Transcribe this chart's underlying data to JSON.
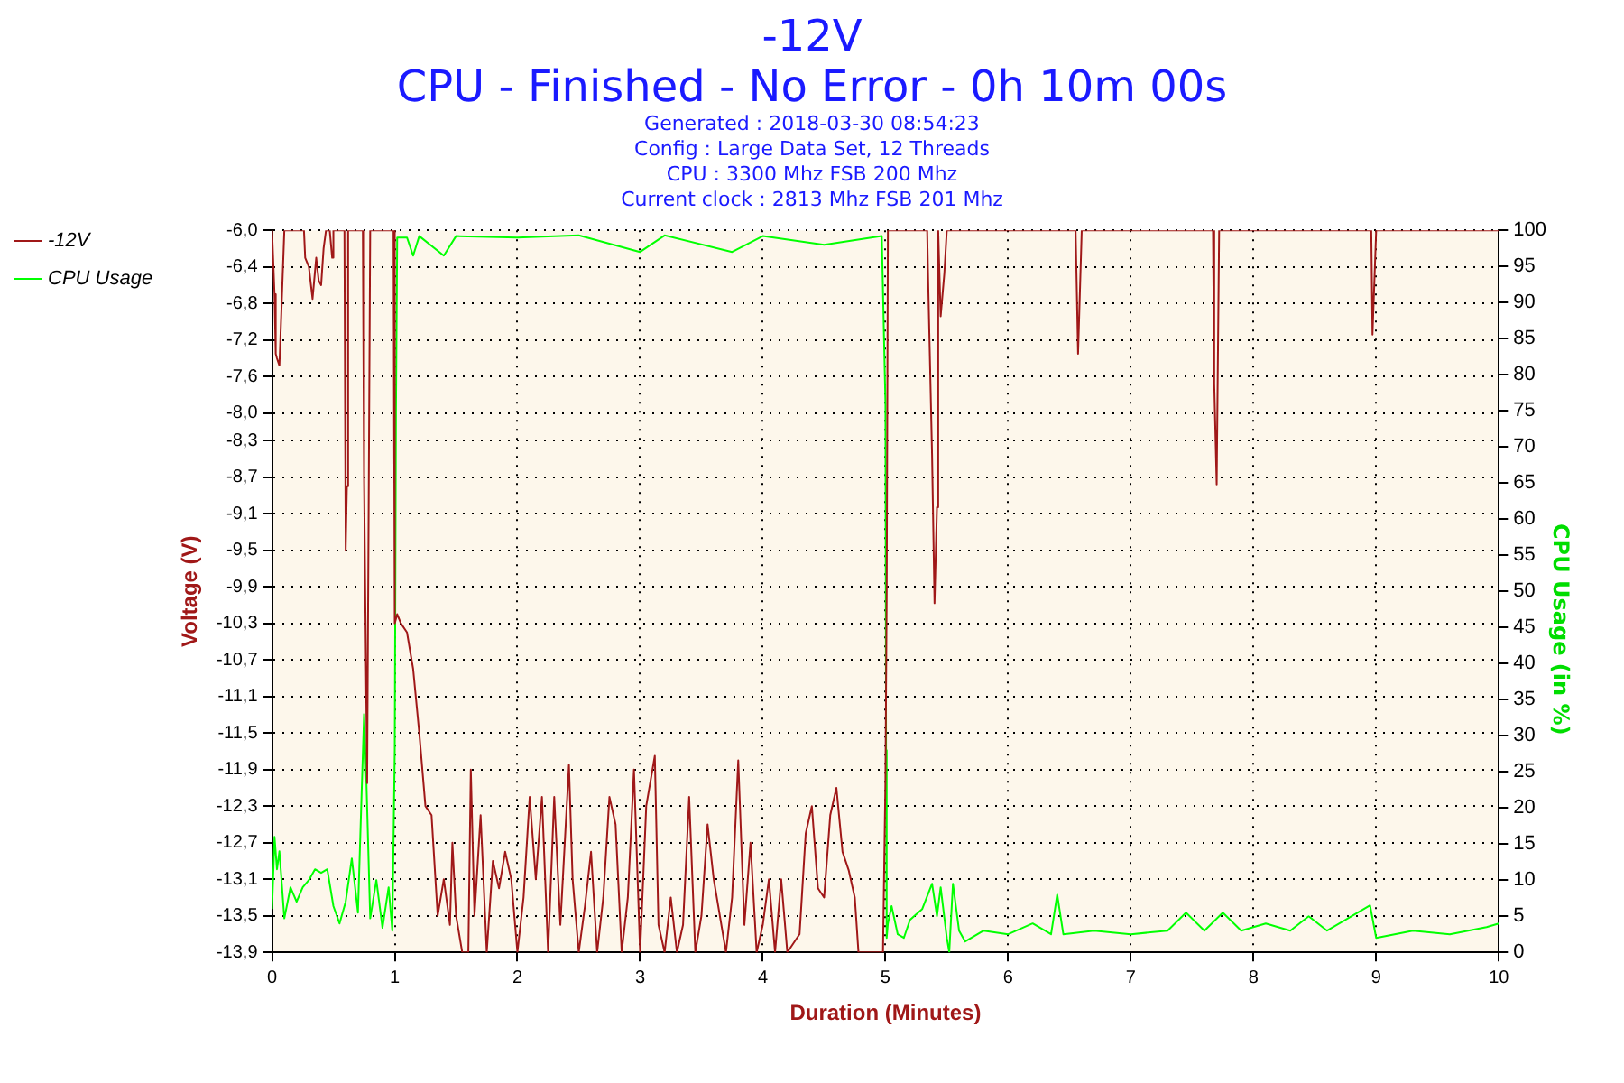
{
  "chart_data": {
    "type": "line",
    "title": "-12V",
    "subtitle": "CPU - Finished - No Error - 0h 10m 00s",
    "annotations": [
      "Generated : 2018-03-30 08:54:23",
      "Config : Large Data Set, 12 Threads",
      "CPU : 3300 Mhz FSB 200 Mhz",
      "Current clock : 2813 Mhz FSB 201 Mhz"
    ],
    "xlabel": "Duration (Minutes)",
    "ylabel": "Voltage (V)",
    "y2label": "CPU Usage (in %)",
    "xlim": [
      0,
      10
    ],
    "xticks": [
      0,
      1,
      2,
      3,
      4,
      5,
      6,
      7,
      8,
      9,
      10
    ],
    "ylim": [
      -13.9,
      -6.0
    ],
    "yticks": [
      {
        "value": -6.0,
        "label": "-6,0"
      },
      {
        "value": -6.4,
        "label": "-6,4"
      },
      {
        "value": -6.8,
        "label": "-6,8"
      },
      {
        "value": -7.2,
        "label": "-7,2"
      },
      {
        "value": -7.6,
        "label": "-7,6"
      },
      {
        "value": -8.0,
        "label": "-8,0"
      },
      {
        "value": -8.3,
        "label": "-8,3"
      },
      {
        "value": -8.7,
        "label": "-8,7"
      },
      {
        "value": -9.1,
        "label": "-9,1"
      },
      {
        "value": -9.5,
        "label": "-9,5"
      },
      {
        "value": -9.9,
        "label": "-9,9"
      },
      {
        "value": -10.3,
        "label": "-10,3"
      },
      {
        "value": -10.7,
        "label": "-10,7"
      },
      {
        "value": -11.1,
        "label": "-11,1"
      },
      {
        "value": -11.5,
        "label": "-11,5"
      },
      {
        "value": -11.9,
        "label": "-11,9"
      },
      {
        "value": -12.3,
        "label": "-12,3"
      },
      {
        "value": -12.7,
        "label": "-12,7"
      },
      {
        "value": -13.1,
        "label": "-13,1"
      },
      {
        "value": -13.5,
        "label": "-13,5"
      },
      {
        "value": -13.9,
        "label": "-13,9"
      }
    ],
    "y2lim": [
      0,
      100
    ],
    "y2ticks": [
      0,
      5,
      10,
      15,
      20,
      25,
      30,
      35,
      40,
      45,
      50,
      55,
      60,
      65,
      70,
      75,
      80,
      85,
      90,
      95,
      100
    ],
    "grid": true,
    "legend": "top left",
    "line_style": "solid",
    "marker": "none",
    "series": [
      {
        "name": "-12V",
        "color": "#a01818",
        "x": [
          0,
          0.02,
          0.03,
          0.04,
          0.06,
          0.1,
          0.12,
          0.26,
          0.27,
          0.3,
          0.33,
          0.36,
          0.38,
          0.4,
          0.42,
          0.44,
          0.47,
          0.49,
          0.5,
          0.59,
          0.6,
          0.61,
          0.62,
          0.74,
          0.75,
          0.775,
          0.8,
          0.99,
          1.0,
          1.02,
          1.05,
          1.1,
          1.15,
          1.2,
          1.25,
          1.3,
          1.35,
          1.4,
          1.45,
          1.47,
          1.5,
          1.55,
          1.6,
          1.62,
          1.65,
          1.7,
          1.75,
          1.8,
          1.85,
          1.9,
          1.95,
          2.0,
          2.05,
          2.1,
          2.15,
          2.2,
          2.25,
          2.3,
          2.35,
          2.42,
          2.45,
          2.5,
          2.55,
          2.6,
          2.65,
          2.7,
          2.75,
          2.8,
          2.85,
          2.9,
          2.95,
          3.0,
          3.05,
          3.12,
          3.15,
          3.2,
          3.25,
          3.3,
          3.35,
          3.4,
          3.45,
          3.5,
          3.55,
          3.6,
          3.65,
          3.7,
          3.75,
          3.8,
          3.85,
          3.9,
          3.95,
          4.0,
          4.05,
          4.1,
          4.15,
          4.2,
          4.3,
          4.35,
          4.4,
          4.45,
          4.5,
          4.55,
          4.6,
          4.65,
          4.7,
          4.75,
          4.78,
          4.98,
          5.0,
          5.01,
          5.02,
          5.34,
          5.35,
          5.38,
          5.4,
          5.42,
          5.43,
          5.45,
          5.48,
          5.5,
          6.55,
          6.57,
          6.6,
          7.67,
          7.68,
          7.7,
          7.72,
          8.96,
          8.97,
          9.0,
          10
        ],
        "values": [
          -6.0,
          -6.7,
          -7.35,
          -7.4,
          -7.48,
          -6.0,
          -6.0,
          -6.0,
          -6.3,
          -6.4,
          -6.75,
          -6.3,
          -6.55,
          -6.6,
          -6.2,
          -6.0,
          -6.0,
          -6.3,
          -6.0,
          -6.0,
          -9.5,
          -8.8,
          -6.0,
          -6.0,
          -8.7,
          -12.05,
          -6.0,
          -6.0,
          -10.3,
          -10.2,
          -10.3,
          -10.4,
          -10.8,
          -11.5,
          -12.3,
          -12.4,
          -13.5,
          -13.1,
          -13.6,
          -12.7,
          -13.5,
          -13.9,
          -13.9,
          -11.9,
          -13.5,
          -12.4,
          -13.9,
          -12.9,
          -13.2,
          -12.8,
          -13.1,
          -13.9,
          -13.3,
          -12.2,
          -13.1,
          -12.2,
          -13.9,
          -12.2,
          -13.6,
          -11.85,
          -13.1,
          -13.9,
          -13.4,
          -12.8,
          -13.9,
          -13.3,
          -12.2,
          -12.5,
          -13.9,
          -13.3,
          -11.9,
          -13.9,
          -12.3,
          -11.75,
          -13.6,
          -13.9,
          -13.3,
          -13.9,
          -13.6,
          -12.2,
          -13.9,
          -13.5,
          -12.5,
          -13.1,
          -13.5,
          -13.9,
          -13.3,
          -11.8,
          -13.6,
          -12.7,
          -13.9,
          -13.6,
          -13.1,
          -13.9,
          -13.1,
          -13.9,
          -13.7,
          -12.6,
          -12.3,
          -13.2,
          -13.3,
          -12.4,
          -12.1,
          -12.8,
          -13.0,
          -13.3,
          -13.9,
          -13.9,
          -12.0,
          -10.0,
          -6.0,
          -6.0,
          -6.67,
          -8.46,
          -10.08,
          -9.03,
          -6.0,
          -6.94,
          -6.47,
          -6.0,
          -6.0,
          -7.35,
          -6.0,
          -6.0,
          -7.68,
          -8.78,
          -6.0,
          -6.0,
          -7.14,
          -6.0,
          -6.0
        ]
      },
      {
        "name": "CPU Usage",
        "color": "#00ff00",
        "axis": "y2",
        "x": [
          0,
          0.02,
          0.04,
          0.06,
          0.1,
          0.15,
          0.2,
          0.25,
          0.3,
          0.35,
          0.4,
          0.45,
          0.5,
          0.55,
          0.6,
          0.65,
          0.7,
          0.75,
          0.77,
          0.8,
          0.85,
          0.9,
          0.95,
          0.98,
          1.0,
          1.01,
          1.02,
          1.1,
          1.15,
          1.2,
          1.4,
          1.5,
          2.0,
          2.5,
          3.0,
          3.2,
          3.75,
          4.0,
          4.5,
          4.97,
          5.0,
          5.005,
          5.01,
          5.02,
          5.05,
          5.1,
          5.15,
          5.2,
          5.3,
          5.38,
          5.42,
          5.45,
          5.5,
          5.52,
          5.55,
          5.6,
          5.65,
          5.8,
          6.0,
          6.2,
          6.35,
          6.4,
          6.45,
          6.7,
          7.0,
          7.3,
          7.45,
          7.6,
          7.75,
          7.9,
          8.1,
          8.3,
          8.45,
          8.6,
          8.8,
          8.95,
          9.0,
          9.3,
          9.6,
          9.9,
          10
        ],
        "values": [
          6,
          16,
          11.5,
          14,
          4.7,
          9,
          7,
          9,
          10,
          11.5,
          11,
          11.5,
          6.4,
          4,
          7,
          13,
          5.5,
          33,
          23,
          4.7,
          10,
          3.4,
          9,
          3,
          28,
          75,
          99,
          99,
          96.5,
          99.2,
          96.5,
          99.2,
          99,
          99.3,
          97,
          99.3,
          97,
          99.2,
          98,
          99.2,
          76,
          28,
          2,
          4,
          6.4,
          2.5,
          2,
          4.5,
          6,
          9.5,
          5,
          9,
          2,
          0,
          9.5,
          3,
          1.5,
          3,
          2.5,
          4,
          2.5,
          8,
          2.5,
          3,
          2.5,
          3,
          5.5,
          3,
          5.5,
          3,
          4,
          3,
          5,
          3,
          5,
          6.5,
          2,
          3,
          2.5,
          3.5,
          4
        ]
      }
    ]
  }
}
